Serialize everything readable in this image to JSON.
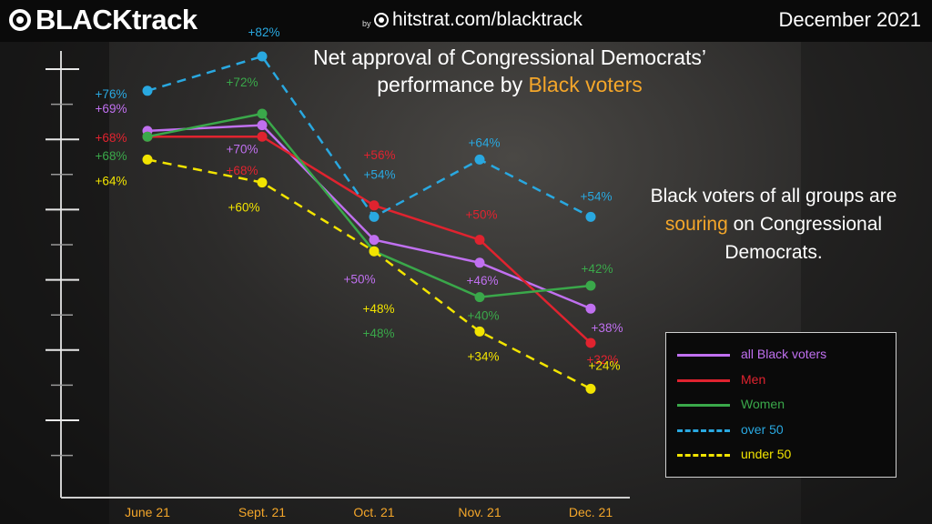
{
  "header": {
    "brand": "BLACKtrack",
    "by": "by",
    "site": "hitstrat.com/blacktrack",
    "date": "December 2021"
  },
  "title": {
    "line1": "Net approval of Congressional Democrats’",
    "line2_prefix": "performance by ",
    "line2_highlight": "Black voters"
  },
  "note": {
    "part1": "Black voters of all groups  are ",
    "highlight": "souring",
    "part2": " on Congressional Democrats."
  },
  "colors": {
    "highlight": "#f4a62a",
    "axis_labels": "#f4a62a"
  },
  "chart_data": {
    "type": "line",
    "categories": [
      "June 21",
      "Sept. 21",
      "Oct. 21",
      "Nov. 21",
      "Dec. 21"
    ],
    "series": [
      {
        "name": "all Black voters",
        "color": "#c070f0",
        "dashed": false,
        "values": [
          69,
          70,
          50,
          46,
          38
        ],
        "labels": [
          "+69%",
          "+70%",
          "+50%",
          "+46%",
          "+38%"
        ]
      },
      {
        "name": "Men",
        "color": "#e0232f",
        "dashed": false,
        "values": [
          68,
          68,
          56,
          50,
          32
        ],
        "labels": [
          "+68%",
          "+68%",
          "+56%",
          "+50%",
          "+32%"
        ]
      },
      {
        "name": "Women",
        "color": "#3aa84a",
        "dashed": false,
        "values": [
          68,
          72,
          48,
          40,
          42
        ],
        "labels": [
          "+68%",
          "+72%",
          "+48%",
          "+40%",
          "+42%"
        ]
      },
      {
        "name": "over 50",
        "color": "#29a8e0",
        "dashed": true,
        "values": [
          76,
          82,
          54,
          64,
          54
        ],
        "labels": [
          "+76%",
          "+82%",
          "+54%",
          "+64%",
          "+54%"
        ]
      },
      {
        "name": "under 50",
        "color": "#f2e400",
        "dashed": true,
        "values": [
          64,
          60,
          48,
          34,
          24
        ],
        "labels": [
          "+64%",
          "+60%",
          "+48%",
          "+34%",
          "+24%"
        ]
      }
    ],
    "ylim": [
      20,
      90
    ],
    "grid": false,
    "legend_position": "bottom-right"
  }
}
